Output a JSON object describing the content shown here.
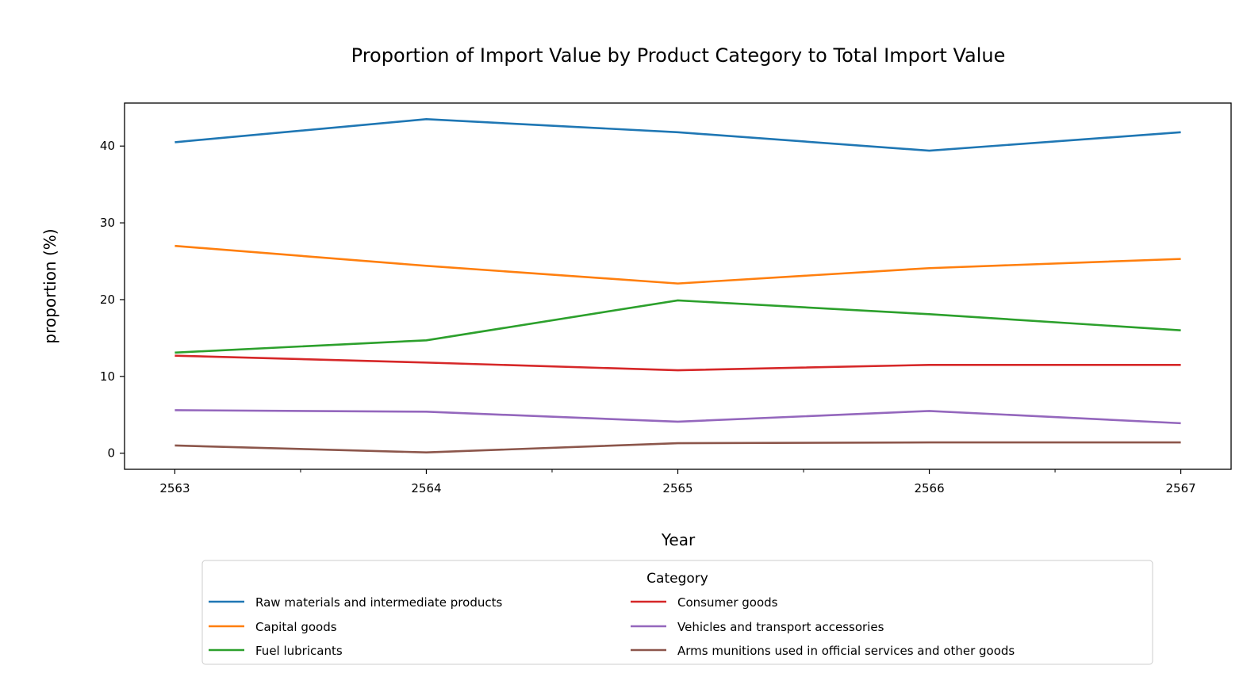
{
  "chart_data": {
    "type": "line",
    "title": "Proportion of Import Value by Product Category to Total Import Value",
    "xlabel": "Year",
    "ylabel": "proportion (%)",
    "x": [
      "2563",
      "2564",
      "2565",
      "2566",
      "2567"
    ],
    "y_ticks": [
      0,
      10,
      20,
      30,
      40
    ],
    "xlim": [
      2562.8,
      2567.2
    ],
    "ylim": [
      -2.1,
      45.6
    ],
    "grid": false,
    "legend": {
      "title": "Category",
      "placement": "bottom-center, outside plot, 2 columns"
    },
    "series": [
      {
        "name": "Raw materials and intermediate products",
        "color": "#1f77b4",
        "values": [
          40.5,
          43.5,
          41.8,
          39.4,
          41.8
        ]
      },
      {
        "name": "Capital goods",
        "color": "#ff7f0e",
        "values": [
          27.0,
          24.4,
          22.1,
          24.1,
          25.3
        ]
      },
      {
        "name": "Fuel lubricants",
        "color": "#2ca02c",
        "values": [
          13.1,
          14.7,
          19.9,
          18.1,
          16.0
        ]
      },
      {
        "name": "Consumer goods",
        "color": "#d62728",
        "values": [
          12.7,
          11.8,
          10.8,
          11.5,
          11.5
        ]
      },
      {
        "name": "Vehicles and transport accessories",
        "color": "#9467bd",
        "values": [
          5.6,
          5.4,
          4.1,
          5.5,
          3.9
        ]
      },
      {
        "name": "Arms munitions used in official services and other goods",
        "color": "#8c564b",
        "values": [
          1.0,
          0.1,
          1.3,
          1.4,
          1.4
        ]
      }
    ]
  }
}
